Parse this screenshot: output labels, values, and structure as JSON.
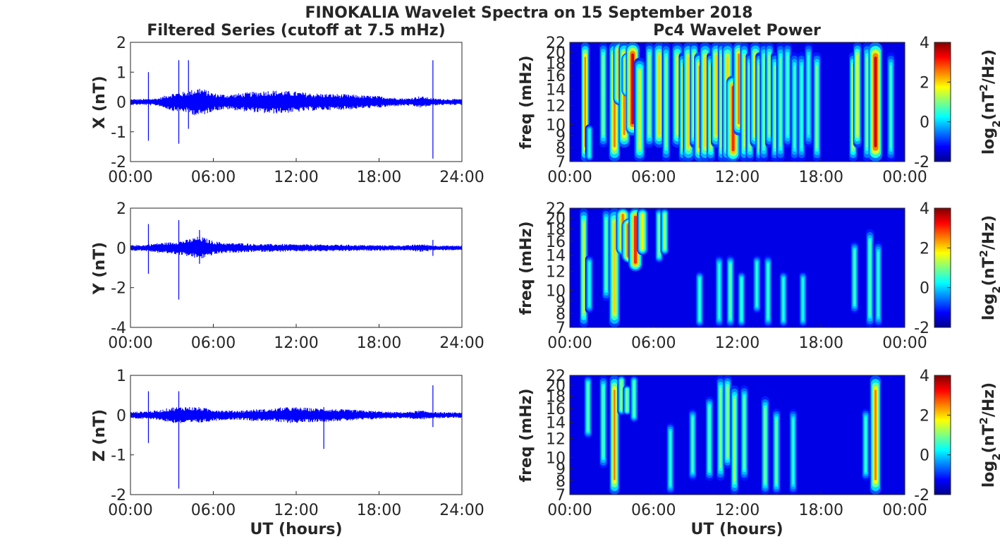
{
  "figure": {
    "title": "FINOKALIA Wavelet Spectra on 15 September 2018",
    "left_title": "Filtered Series (cutoff at 7.5 mHz)",
    "right_title": "Pc4 Wavelet Power"
  },
  "colors": {
    "series_line": "#0000ff",
    "axes": "#262626",
    "background": "#ffffff",
    "colormap": "jet"
  },
  "chart_data": [
    {
      "type": "line",
      "name": "X filtered series",
      "xlabel": "",
      "ylabel": "X (nT)",
      "xlim_hours": [
        0,
        24
      ],
      "ylim": [
        -2,
        2
      ],
      "yticks": [
        "2",
        "1",
        "0",
        "-1",
        "-2"
      ],
      "xticks": [
        "00:00",
        "06:00",
        "12:00",
        "18:00",
        "24:00"
      ],
      "envelope_amplitude_nT": [
        0.1,
        0.1,
        0.13,
        0.3,
        0.35,
        0.5,
        0.3,
        0.25,
        0.3,
        0.35,
        0.4,
        0.38,
        0.35,
        0.3,
        0.28,
        0.27,
        0.25,
        0.22,
        0.2,
        0.15,
        0.12,
        0.2,
        0.12,
        0.1
      ],
      "spikes": [
        {
          "t": 1.3,
          "min": -1.3,
          "max": 1.0
        },
        {
          "t": 3.5,
          "min": -1.4,
          "max": 1.4
        },
        {
          "t": 4.2,
          "min": -0.9,
          "max": 1.4
        },
        {
          "t": 21.9,
          "min": -1.9,
          "max": 1.4
        }
      ]
    },
    {
      "type": "line",
      "name": "Y filtered series",
      "xlabel": "",
      "ylabel": "Y (nT)",
      "xlim_hours": [
        0,
        24
      ],
      "ylim": [
        -4,
        2
      ],
      "yticks": [
        "2",
        "0",
        "-2",
        "-4"
      ],
      "xticks": [
        "00:00",
        "06:00",
        "12:00",
        "18:00",
        "24:00"
      ],
      "envelope_amplitude_nT": [
        0.15,
        0.15,
        0.25,
        0.3,
        0.4,
        0.6,
        0.35,
        0.25,
        0.25,
        0.2,
        0.2,
        0.2,
        0.18,
        0.18,
        0.17,
        0.17,
        0.16,
        0.15,
        0.14,
        0.14,
        0.13,
        0.2,
        0.13,
        0.12
      ],
      "spikes": [
        {
          "t": 1.3,
          "min": -1.3,
          "max": 1.2
        },
        {
          "t": 3.5,
          "min": -2.6,
          "max": 1.4
        },
        {
          "t": 5.0,
          "min": -0.8,
          "max": 0.9
        },
        {
          "t": 21.9,
          "min": -0.4,
          "max": 0.4
        }
      ]
    },
    {
      "type": "line",
      "name": "Z filtered series",
      "xlabel": "UT (hours)",
      "ylabel": "Z (nT)",
      "xlim_hours": [
        0,
        24
      ],
      "ylim": [
        -2,
        1
      ],
      "yticks": [
        "1",
        "0",
        "-1",
        "-2"
      ],
      "xticks": [
        "00:00",
        "06:00",
        "12:00",
        "18:00",
        "24:00"
      ],
      "envelope_amplitude_nT": [
        0.08,
        0.1,
        0.12,
        0.2,
        0.22,
        0.2,
        0.15,
        0.12,
        0.12,
        0.15,
        0.15,
        0.2,
        0.2,
        0.18,
        0.17,
        0.15,
        0.14,
        0.12,
        0.1,
        0.08,
        0.08,
        0.12,
        0.08,
        0.07
      ],
      "spikes": [
        {
          "t": 1.3,
          "min": -0.7,
          "max": 0.6
        },
        {
          "t": 3.5,
          "min": -1.85,
          "max": 0.6
        },
        {
          "t": 14.0,
          "min": -0.85,
          "max": 0.2
        },
        {
          "t": 21.9,
          "min": -0.3,
          "max": 0.75
        }
      ]
    },
    {
      "type": "heatmap",
      "name": "X Pc4 wavelet power",
      "xlabel": "",
      "ylabel": "freq (mHz)",
      "xlim_hours": [
        0,
        24
      ],
      "ylim_mHz": [
        7,
        22
      ],
      "yticks": [
        "22",
        "20",
        "18",
        "16",
        "14",
        "12",
        "10",
        "9",
        "8",
        "7"
      ],
      "xticks": [
        "00:00",
        "06:00",
        "12:00",
        "18:00",
        "00:00"
      ],
      "colorbar_label": "log2(nT^2/Hz)",
      "colorbar_ticks": [
        "4",
        "2",
        "0",
        "-2"
      ],
      "clim": [
        -2,
        4
      ],
      "stripes": [
        [
          1.1,
          0.06,
          2.5,
          22,
          7
        ],
        [
          1.4,
          0.06,
          0.5,
          10,
          7
        ],
        [
          2.4,
          0.06,
          1.0,
          22,
          8
        ],
        [
          3.2,
          0.08,
          2.5,
          22,
          7
        ],
        [
          3.6,
          0.1,
          3.0,
          22,
          12
        ],
        [
          3.9,
          0.08,
          2.5,
          22,
          8
        ],
        [
          4.2,
          0.1,
          3.5,
          20,
          13
        ],
        [
          4.5,
          0.1,
          3.5,
          22,
          9
        ],
        [
          5.0,
          0.08,
          1.5,
          19,
          7
        ],
        [
          5.7,
          0.06,
          1.2,
          22,
          8
        ],
        [
          6.4,
          0.08,
          2.0,
          22,
          8
        ],
        [
          6.9,
          0.06,
          1.0,
          22,
          7
        ],
        [
          7.7,
          0.08,
          1.5,
          22,
          8
        ],
        [
          8.1,
          0.06,
          1.5,
          20,
          7
        ],
        [
          8.5,
          0.08,
          2.0,
          22,
          7
        ],
        [
          8.9,
          0.06,
          1.8,
          22,
          8
        ],
        [
          9.3,
          0.08,
          2.5,
          20,
          7
        ],
        [
          9.7,
          0.08,
          2.0,
          22,
          7
        ],
        [
          10.1,
          0.06,
          1.5,
          20,
          7
        ],
        [
          10.5,
          0.08,
          2.0,
          22,
          8
        ],
        [
          10.9,
          0.06,
          1.8,
          22,
          7
        ],
        [
          11.3,
          0.08,
          2.0,
          22,
          7
        ],
        [
          11.7,
          0.1,
          3.0,
          16,
          7
        ],
        [
          12.1,
          0.08,
          2.5,
          22,
          9
        ],
        [
          12.5,
          0.06,
          1.5,
          22,
          7
        ],
        [
          12.9,
          0.06,
          1.2,
          20,
          7
        ],
        [
          13.3,
          0.08,
          2.0,
          22,
          8
        ],
        [
          13.6,
          0.06,
          1.5,
          20,
          7
        ],
        [
          13.9,
          0.06,
          1.0,
          22,
          7
        ],
        [
          14.3,
          0.06,
          1.2,
          22,
          8
        ],
        [
          14.7,
          0.06,
          1.0,
          20,
          7
        ],
        [
          15.1,
          0.06,
          0.8,
          22,
          7
        ],
        [
          15.6,
          0.06,
          0.8,
          22,
          8
        ],
        [
          16.1,
          0.06,
          0.6,
          20,
          7
        ],
        [
          16.6,
          0.06,
          0.6,
          20,
          7
        ],
        [
          17.1,
          0.06,
          0.5,
          22,
          8
        ],
        [
          17.7,
          0.06,
          1.0,
          20,
          7
        ],
        [
          20.3,
          0.06,
          1.5,
          20,
          7
        ],
        [
          20.6,
          0.06,
          1.8,
          22,
          8
        ],
        [
          21.3,
          0.06,
          1.0,
          22,
          7
        ],
        [
          21.9,
          0.1,
          3.5,
          22,
          7
        ],
        [
          23.0,
          0.06,
          0.6,
          20,
          7
        ]
      ]
    },
    {
      "type": "heatmap",
      "name": "Y Pc4 wavelet power",
      "xlabel": "",
      "ylabel": "freq (mHz)",
      "xlim_hours": [
        0,
        24
      ],
      "ylim_mHz": [
        7,
        22
      ],
      "yticks": [
        "22",
        "20",
        "18",
        "16",
        "14",
        "12",
        "10",
        "9",
        "8",
        "7"
      ],
      "xticks": [
        "00:00",
        "06:00",
        "12:00",
        "18:00",
        "00:00"
      ],
      "colorbar_label": "log2(nT^2/Hz)",
      "colorbar_ticks": [
        "4",
        "2",
        "0",
        "-2"
      ],
      "clim": [
        -2,
        4
      ],
      "stripes": [
        [
          1.0,
          0.06,
          1.5,
          22,
          7
        ],
        [
          1.4,
          0.06,
          0.5,
          14,
          8
        ],
        [
          2.6,
          0.06,
          0.8,
          22,
          9
        ],
        [
          3.2,
          0.08,
          2.0,
          22,
          7
        ],
        [
          3.8,
          0.1,
          2.5,
          22,
          14
        ],
        [
          4.3,
          0.12,
          3.5,
          20,
          13
        ],
        [
          4.7,
          0.1,
          3.0,
          22,
          12
        ],
        [
          5.2,
          0.08,
          1.8,
          22,
          14
        ],
        [
          6.4,
          0.06,
          1.0,
          22,
          13
        ],
        [
          6.8,
          0.06,
          1.2,
          22,
          14
        ],
        [
          9.3,
          0.06,
          0.6,
          12,
          7
        ],
        [
          10.7,
          0.06,
          0.5,
          14,
          7
        ],
        [
          11.5,
          0.06,
          0.8,
          14,
          7
        ],
        [
          12.3,
          0.06,
          0.6,
          12,
          7
        ],
        [
          13.4,
          0.06,
          0.5,
          14,
          8
        ],
        [
          14.2,
          0.06,
          0.6,
          14,
          7
        ],
        [
          15.3,
          0.06,
          0.5,
          12,
          7
        ],
        [
          16.7,
          0.06,
          0.4,
          12,
          7
        ],
        [
          20.4,
          0.06,
          0.6,
          16,
          8
        ],
        [
          21.5,
          0.06,
          0.8,
          18,
          7
        ],
        [
          22.1,
          0.06,
          0.5,
          16,
          7
        ]
      ]
    },
    {
      "type": "heatmap",
      "name": "Z Pc4 wavelet power",
      "xlabel": "UT (hours)",
      "ylabel": "freq (mHz)",
      "xlim_hours": [
        0,
        24
      ],
      "ylim_mHz": [
        7,
        22
      ],
      "yticks": [
        "22",
        "20",
        "18",
        "16",
        "14",
        "12",
        "10",
        "9",
        "8",
        "7"
      ],
      "xticks": [
        "00:00",
        "06:00",
        "12:00",
        "18:00",
        "00:00"
      ],
      "colorbar_label": "log2(nT^2/Hz)",
      "colorbar_ticks": [
        "4",
        "2",
        "0",
        "-2"
      ],
      "clim": [
        -2,
        4
      ],
      "stripes": [
        [
          1.3,
          0.06,
          0.8,
          22,
          12
        ],
        [
          2.4,
          0.06,
          0.8,
          22,
          9
        ],
        [
          3.2,
          0.07,
          2.5,
          22,
          7
        ],
        [
          3.7,
          0.06,
          1.2,
          22,
          15
        ],
        [
          4.1,
          0.06,
          1.0,
          20,
          15
        ],
        [
          4.6,
          0.06,
          0.8,
          22,
          14
        ],
        [
          7.2,
          0.06,
          0.5,
          14,
          7
        ],
        [
          8.8,
          0.06,
          0.6,
          16,
          8
        ],
        [
          10.0,
          0.06,
          0.8,
          18,
          8
        ],
        [
          10.8,
          0.06,
          1.0,
          22,
          8
        ],
        [
          11.3,
          0.06,
          1.2,
          22,
          9
        ],
        [
          11.8,
          0.06,
          1.2,
          20,
          7
        ],
        [
          12.5,
          0.06,
          0.8,
          20,
          8
        ],
        [
          14.0,
          0.06,
          1.0,
          18,
          7
        ],
        [
          14.8,
          0.06,
          0.8,
          16,
          7
        ],
        [
          16.0,
          0.06,
          0.5,
          16,
          7
        ],
        [
          21.2,
          0.06,
          0.6,
          16,
          8
        ],
        [
          21.9,
          0.08,
          2.5,
          22,
          7
        ]
      ]
    }
  ]
}
